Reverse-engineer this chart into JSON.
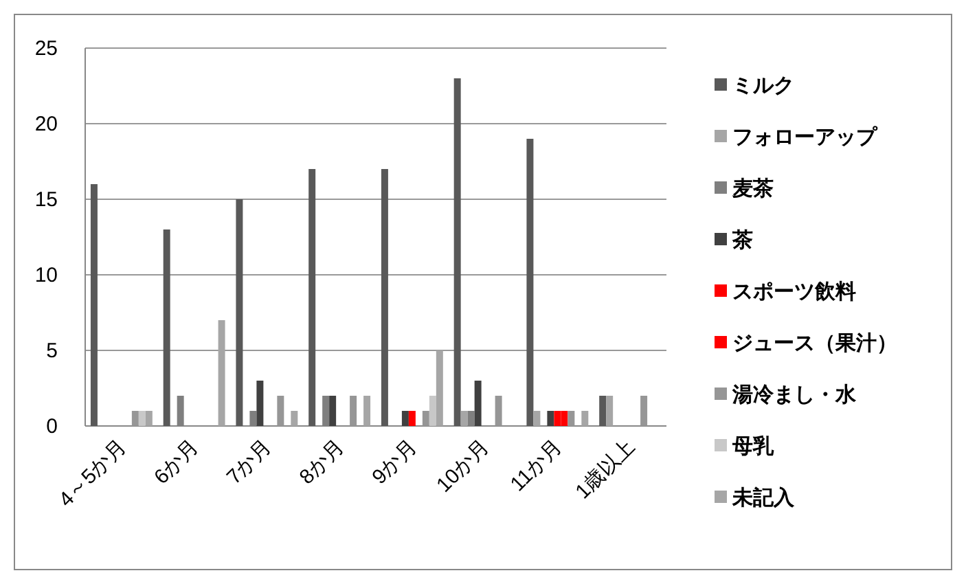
{
  "chart_data": {
    "type": "bar",
    "categories": [
      "4～5か月",
      "6か月",
      "7か月",
      "8か月",
      "9か月",
      "10か月",
      "11か月",
      "1歳以上"
    ],
    "series": [
      {
        "name": "ミルク",
        "color": "#595959",
        "values": [
          16,
          13,
          15,
          17,
          17,
          23,
          19,
          2
        ]
      },
      {
        "name": "フォローアップ",
        "color": "#a6a6a6",
        "values": [
          null,
          null,
          null,
          null,
          null,
          1,
          1,
          2
        ]
      },
      {
        "name": "麦茶",
        "color": "#7f7f7f",
        "values": [
          null,
          2,
          1,
          2,
          null,
          1,
          null,
          null
        ]
      },
      {
        "name": "茶",
        "color": "#404040",
        "values": [
          null,
          null,
          3,
          2,
          1,
          3,
          1,
          null
        ]
      },
      {
        "name": "スポーツ飲料",
        "color": "#ff0000",
        "values": [
          null,
          null,
          null,
          null,
          1,
          null,
          1,
          null
        ]
      },
      {
        "name": "ジュース（果汁）",
        "color": "#ff0000",
        "values": [
          null,
          null,
          null,
          null,
          null,
          null,
          1,
          null
        ]
      },
      {
        "name": "湯冷まし・水",
        "color": "#969696",
        "values": [
          1,
          null,
          2,
          2,
          1,
          2,
          1,
          2
        ]
      },
      {
        "name": "母乳",
        "color": "#c8c8c8",
        "values": [
          1,
          null,
          null,
          null,
          2,
          null,
          null,
          null
        ]
      },
      {
        "name": "未記入",
        "color": "#a6a6a6",
        "values": [
          1,
          7,
          1,
          2,
          5,
          null,
          1,
          null
        ]
      }
    ],
    "ylim": [
      0,
      25
    ],
    "yticks": [
      0,
      5,
      10,
      15,
      20,
      25
    ],
    "grid": "y",
    "legend": "right"
  }
}
